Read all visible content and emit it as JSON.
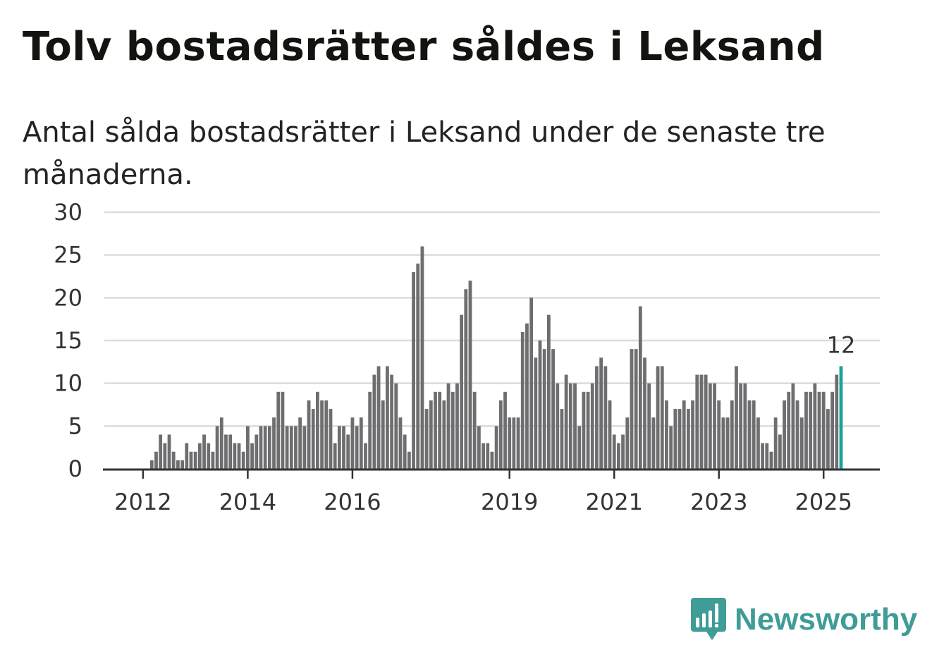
{
  "title": "Tolv bostadsrätter såldes i Leksand",
  "subtitle": "Antal sålda bostadsrätter i Leksand under de senaste tre månaderna.",
  "brand": {
    "name": "Newsworthy",
    "color": "#3f9c96",
    "icon": "bar-chart-speech-bubble-icon"
  },
  "chart_data": {
    "type": "bar",
    "x_start": "2011-05",
    "x_end": "2025-04",
    "x_ticks": [
      "2012",
      "2014",
      "2016",
      "2019",
      "2021",
      "2023",
      "2025"
    ],
    "y_ticks": [
      "0",
      "5",
      "10",
      "15",
      "20",
      "25",
      "30"
    ],
    "ylim": [
      0,
      30
    ],
    "grid": true,
    "bar_color": "#6e6d70",
    "highlight_color": "#1aa19a",
    "highlight_label": "12",
    "values": [
      0,
      0,
      0,
      0,
      0,
      0,
      0,
      0,
      0,
      0,
      1,
      2,
      4,
      3,
      4,
      2,
      1,
      1,
      3,
      2,
      2,
      3,
      4,
      3,
      2,
      5,
      6,
      4,
      4,
      3,
      3,
      2,
      5,
      3,
      4,
      5,
      5,
      5,
      6,
      9,
      9,
      5,
      5,
      5,
      6,
      5,
      8,
      7,
      9,
      8,
      8,
      7,
      3,
      5,
      5,
      4,
      6,
      5,
      6,
      3,
      9,
      11,
      12,
      8,
      12,
      11,
      10,
      6,
      4,
      2,
      23,
      24,
      26,
      7,
      8,
      9,
      9,
      8,
      10,
      9,
      10,
      18,
      21,
      22,
      9,
      5,
      3,
      3,
      2,
      5,
      8,
      9,
      6,
      6,
      6,
      16,
      17,
      20,
      13,
      15,
      14,
      18,
      14,
      10,
      7,
      11,
      10,
      10,
      5,
      9,
      9,
      10,
      12,
      13,
      12,
      8,
      4,
      3,
      4,
      6,
      14,
      14,
      19,
      13,
      10,
      6,
      12,
      12,
      8,
      5,
      7,
      7,
      8,
      7,
      8,
      11,
      11,
      11,
      10,
      10,
      8,
      6,
      6,
      8,
      12,
      10,
      10,
      8,
      8,
      6,
      3,
      3,
      2,
      6,
      4,
      8,
      9,
      10,
      8,
      6,
      9,
      9,
      10,
      9,
      9,
      7,
      9,
      11,
      12
    ]
  }
}
